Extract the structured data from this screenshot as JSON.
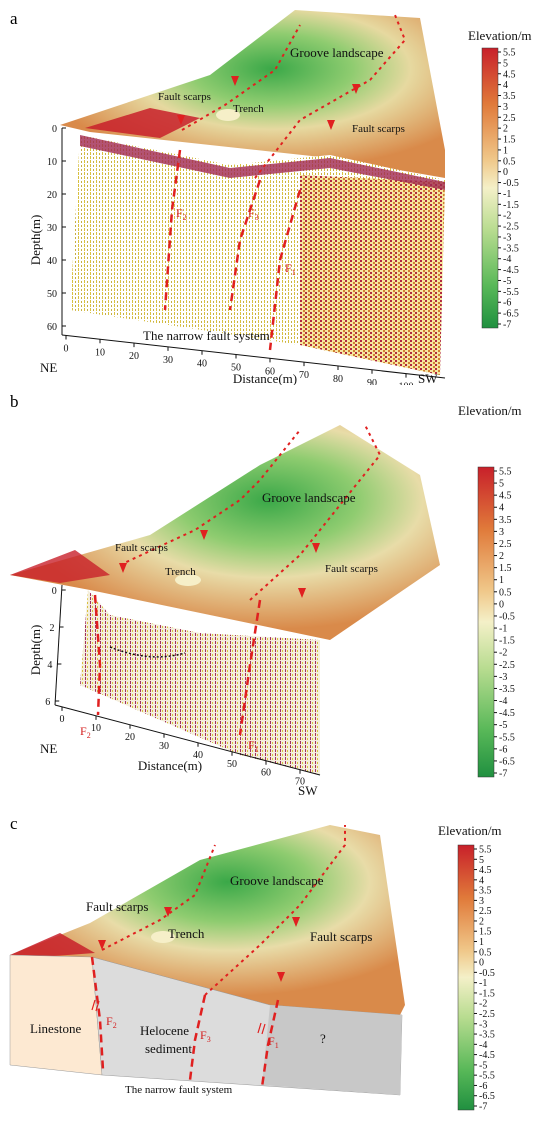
{
  "colorbar": {
    "title": "Elevation/m",
    "ticks": [
      "5.5",
      "5",
      "4.5",
      "4",
      "3.5",
      "3",
      "2.5",
      "2",
      "1.5",
      "1",
      "0.5",
      "0",
      "-0.5",
      "-1",
      "-1.5",
      "-2",
      "-2.5",
      "-3",
      "-3.5",
      "-4",
      "-4.5",
      "-5",
      "-5.5",
      "-6",
      "-6.5",
      "-7"
    ],
    "colors": {
      "top": "#c8202a",
      "upper": "#e07a3a",
      "mid_high": "#f0c88a",
      "mid": "#f4f0c8",
      "mid_low": "#b8dc90",
      "low": "#58b858",
      "bottom": "#209040"
    }
  },
  "panel_a": {
    "letter": "a",
    "groove": "Groove landscape",
    "fault_scarps_left": "Fault scarps",
    "fault_scarps_right": "Fault scarps",
    "trench": "Trench",
    "f2": "F",
    "f2_sub": "2",
    "f3": "F",
    "f3_sub": "3",
    "f1": "F",
    "f1_sub": "1",
    "depth_label": "Depth(m)",
    "depth_ticks": [
      "0",
      "10",
      "20",
      "30",
      "40",
      "50",
      "60"
    ],
    "distance_label": "Distance(m)",
    "distance_ticks": [
      "0",
      "10",
      "20",
      "30",
      "40",
      "50",
      "60",
      "70",
      "80",
      "90",
      "100"
    ],
    "ne": "NE",
    "sw": "SW",
    "system": "The narrow fault system"
  },
  "panel_b": {
    "letter": "b",
    "groove": "Groove landscape",
    "fault_scarps_left": "Fault scarps",
    "fault_scarps_right": "Fault scarps",
    "trench": "Trench",
    "f2": "F",
    "f2_sub": "2",
    "f1": "F",
    "f1_sub": "1",
    "depth_label": "Depth(m)",
    "depth_ticks": [
      "0",
      "2",
      "4",
      "6"
    ],
    "distance_label": "Distance(m)",
    "distance_ticks": [
      "0",
      "10",
      "20",
      "30",
      "40",
      "50",
      "60",
      "70"
    ],
    "ne": "NE",
    "sw": "SW"
  },
  "panel_c": {
    "letter": "c",
    "groove": "Groove landscape",
    "fault_scarps_left": "Fault scarps",
    "fault_scarps_right": "Fault scarps",
    "trench": "Trench",
    "limestone": "Linestone",
    "sediment_1": "Helocene",
    "sediment_2": "sediment",
    "unknown": "?",
    "f2": "F",
    "f2_sub": "2",
    "f3": "F",
    "f3_sub": "3",
    "f1": "F",
    "f1_sub": "1",
    "system": "The narrow fault system"
  }
}
